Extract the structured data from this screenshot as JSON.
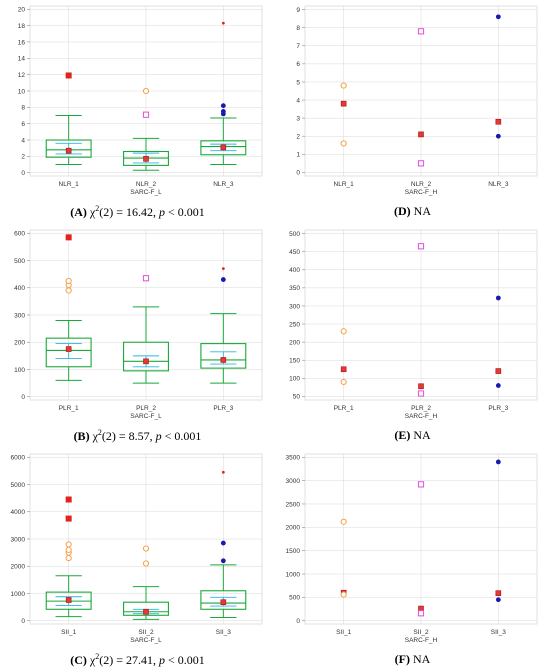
{
  "chart_data": [
    {
      "id": "A",
      "type": "box",
      "caption": {
        "letter": "(A)",
        "stat_lead": " χ",
        "stat_sup": "2",
        "stat_mid": "(2) = 16.42, ",
        "p_symbol": "p",
        "p_rest": " < 0.001"
      },
      "xlabel": "SARC-F_L",
      "categories": [
        "NLR_1",
        "NLR_2",
        "NLR_3"
      ],
      "yticks": [
        0,
        2,
        4,
        6,
        8,
        10,
        12,
        14,
        16,
        18,
        20
      ],
      "ylim": [
        -0.4,
        20.4
      ],
      "groups": [
        {
          "q1": 1.9,
          "median": 2.8,
          "q3": 4.0,
          "wlo": 1.0,
          "whi": 7.0,
          "ci_lo": 2.3,
          "ci_hi": 3.6,
          "mean": 2.7,
          "outliers": [
            {
              "v": 11.9,
              "kind": "far"
            }
          ]
        },
        {
          "q1": 0.9,
          "median": 1.8,
          "q3": 2.6,
          "wlo": 0.3,
          "whi": 4.2,
          "ci_lo": 1.2,
          "ci_hi": 2.4,
          "mean": 1.7,
          "outliers": [
            {
              "v": 7.1,
              "kind": "pink"
            },
            {
              "v": 10.0,
              "kind": "out"
            }
          ]
        },
        {
          "q1": 2.2,
          "median": 3.2,
          "q3": 3.9,
          "wlo": 1.0,
          "whi": 6.7,
          "ci_lo": 2.7,
          "ci_hi": 3.5,
          "mean": 3.1,
          "outliers": [
            {
              "v": 7.2,
              "kind": "blue"
            },
            {
              "v": 7.5,
              "kind": "blue"
            },
            {
              "v": 8.2,
              "kind": "blue"
            },
            {
              "v": 18.3,
              "kind": "star"
            }
          ]
        }
      ]
    },
    {
      "id": "D",
      "type": "scatter",
      "caption": {
        "letter": "(D)",
        "text": " NA"
      },
      "xlabel": "SARC-F_H",
      "categories": [
        "NLR_1",
        "NLR_2",
        "NLR_3"
      ],
      "yticks": [
        0,
        1,
        2,
        3,
        4,
        5,
        6,
        7,
        8,
        9
      ],
      "ylim": [
        -0.2,
        9.2
      ],
      "points": [
        {
          "cat": 0,
          "v": 4.8,
          "kind": "out"
        },
        {
          "cat": 0,
          "v": 3.8,
          "kind": "mean"
        },
        {
          "cat": 0,
          "v": 1.6,
          "kind": "out"
        },
        {
          "cat": 1,
          "v": 7.8,
          "kind": "pink"
        },
        {
          "cat": 1,
          "v": 2.1,
          "kind": "mean"
        },
        {
          "cat": 1,
          "v": 0.5,
          "kind": "pink"
        },
        {
          "cat": 2,
          "v": 8.6,
          "kind": "blue"
        },
        {
          "cat": 2,
          "v": 2.8,
          "kind": "mean"
        },
        {
          "cat": 2,
          "v": 2.0,
          "kind": "blue"
        }
      ]
    },
    {
      "id": "B",
      "type": "box",
      "caption": {
        "letter": "(B)",
        "stat_lead": " χ",
        "stat_sup": "2",
        "stat_mid": "(2) = 8.57, ",
        "p_symbol": "p",
        "p_rest": " < 0.001"
      },
      "xlabel": "SARC-F_L",
      "categories": [
        "PLR_1",
        "PLR_2",
        "PLR_3"
      ],
      "yticks": [
        0,
        100,
        200,
        300,
        400,
        500,
        600
      ],
      "ylim": [
        -12,
        612
      ],
      "groups": [
        {
          "q1": 110,
          "median": 170,
          "q3": 215,
          "wlo": 60,
          "whi": 280,
          "ci_lo": 140,
          "ci_hi": 195,
          "mean": 175,
          "outliers": [
            {
              "v": 390,
              "kind": "out"
            },
            {
              "v": 410,
              "kind": "out"
            },
            {
              "v": 425,
              "kind": "out"
            },
            {
              "v": 585,
              "kind": "far"
            }
          ]
        },
        {
          "q1": 95,
          "median": 130,
          "q3": 200,
          "wlo": 50,
          "whi": 330,
          "ci_lo": 110,
          "ci_hi": 150,
          "mean": 130,
          "outliers": [
            {
              "v": 435,
              "kind": "pink"
            }
          ]
        },
        {
          "q1": 105,
          "median": 135,
          "q3": 195,
          "wlo": 50,
          "whi": 305,
          "ci_lo": 120,
          "ci_hi": 165,
          "mean": 135,
          "outliers": [
            {
              "v": 430,
              "kind": "blue"
            },
            {
              "v": 470,
              "kind": "star"
            }
          ]
        }
      ]
    },
    {
      "id": "E",
      "type": "scatter",
      "caption": {
        "letter": "(E)",
        "text": " NA"
      },
      "xlabel": "SARC-F_H",
      "categories": [
        "PLR_1",
        "PLR_2",
        "PLR_3"
      ],
      "yticks": [
        50,
        100,
        150,
        200,
        250,
        300,
        350,
        400,
        450,
        500
      ],
      "ylim": [
        40,
        510
      ],
      "points": [
        {
          "cat": 0,
          "v": 230,
          "kind": "out"
        },
        {
          "cat": 0,
          "v": 125,
          "kind": "mean"
        },
        {
          "cat": 0,
          "v": 90,
          "kind": "out"
        },
        {
          "cat": 1,
          "v": 465,
          "kind": "pink"
        },
        {
          "cat": 1,
          "v": 78,
          "kind": "mean"
        },
        {
          "cat": 1,
          "v": 58,
          "kind": "pink"
        },
        {
          "cat": 2,
          "v": 322,
          "kind": "blue"
        },
        {
          "cat": 2,
          "v": 120,
          "kind": "mean"
        },
        {
          "cat": 2,
          "v": 80,
          "kind": "blue"
        }
      ]
    },
    {
      "id": "C",
      "type": "box",
      "caption": {
        "letter": "(C)",
        "stat_lead": " χ",
        "stat_sup": "2",
        "stat_mid": "(2) = 27.41, ",
        "p_symbol": "p",
        "p_rest": " < 0.001"
      },
      "xlabel": "SARC-F_L",
      "categories": [
        "SII_1",
        "SII_2",
        "SII_3"
      ],
      "yticks": [
        0,
        1000,
        2000,
        3000,
        4000,
        5000,
        6000
      ],
      "ylim": [
        -120,
        6120
      ],
      "groups": [
        {
          "q1": 420,
          "median": 720,
          "q3": 1050,
          "wlo": 150,
          "whi": 1650,
          "ci_lo": 560,
          "ci_hi": 880,
          "mean": 760,
          "outliers": [
            {
              "v": 2300,
              "kind": "out"
            },
            {
              "v": 2500,
              "kind": "out"
            },
            {
              "v": 2600,
              "kind": "out"
            },
            {
              "v": 2800,
              "kind": "out"
            },
            {
              "v": 3750,
              "kind": "far"
            },
            {
              "v": 4450,
              "kind": "far"
            }
          ]
        },
        {
          "q1": 200,
          "median": 330,
          "q3": 680,
          "wlo": 50,
          "whi": 1250,
          "ci_lo": 260,
          "ci_hi": 420,
          "mean": 330,
          "outliers": [
            {
              "v": 2100,
              "kind": "out"
            },
            {
              "v": 2650,
              "kind": "out"
            }
          ]
        },
        {
          "q1": 420,
          "median": 650,
          "q3": 1100,
          "wlo": 120,
          "whi": 2050,
          "ci_lo": 540,
          "ci_hi": 860,
          "mean": 680,
          "outliers": [
            {
              "v": 2200,
              "kind": "blue"
            },
            {
              "v": 2850,
              "kind": "blue"
            },
            {
              "v": 5450,
              "kind": "star"
            }
          ]
        }
      ]
    },
    {
      "id": "F",
      "type": "scatter",
      "caption": {
        "letter": "(F)",
        "text": " NA"
      },
      "xlabel": "SARC-F_H",
      "categories": [
        "SII_1",
        "SII_2",
        "SII_3"
      ],
      "yticks": [
        0,
        500,
        1000,
        1500,
        2000,
        2500,
        3000,
        3500
      ],
      "ylim": [
        -70,
        3570
      ],
      "points": [
        {
          "cat": 0,
          "v": 2120,
          "kind": "out"
        },
        {
          "cat": 0,
          "v": 600,
          "kind": "mean"
        },
        {
          "cat": 0,
          "v": 560,
          "kind": "out"
        },
        {
          "cat": 1,
          "v": 2920,
          "kind": "pink"
        },
        {
          "cat": 1,
          "v": 260,
          "kind": "mean"
        },
        {
          "cat": 1,
          "v": 160,
          "kind": "pink"
        },
        {
          "cat": 2,
          "v": 3400,
          "kind": "blue"
        },
        {
          "cat": 2,
          "v": 590,
          "kind": "mean"
        },
        {
          "cat": 2,
          "v": 450,
          "kind": "blue"
        }
      ]
    }
  ],
  "colors": {
    "box": "#1aa83a",
    "ci": "#29b6e0",
    "mean": "#e53935",
    "outlier_orange": "#f5a04a",
    "outlier_red": "#f0605a",
    "outlier_pink": "#e04fd8",
    "outlier_blue": "#1a1ab0",
    "far_red": "#e0241c",
    "grid": "#d8d8d8",
    "axis": "#888888"
  }
}
